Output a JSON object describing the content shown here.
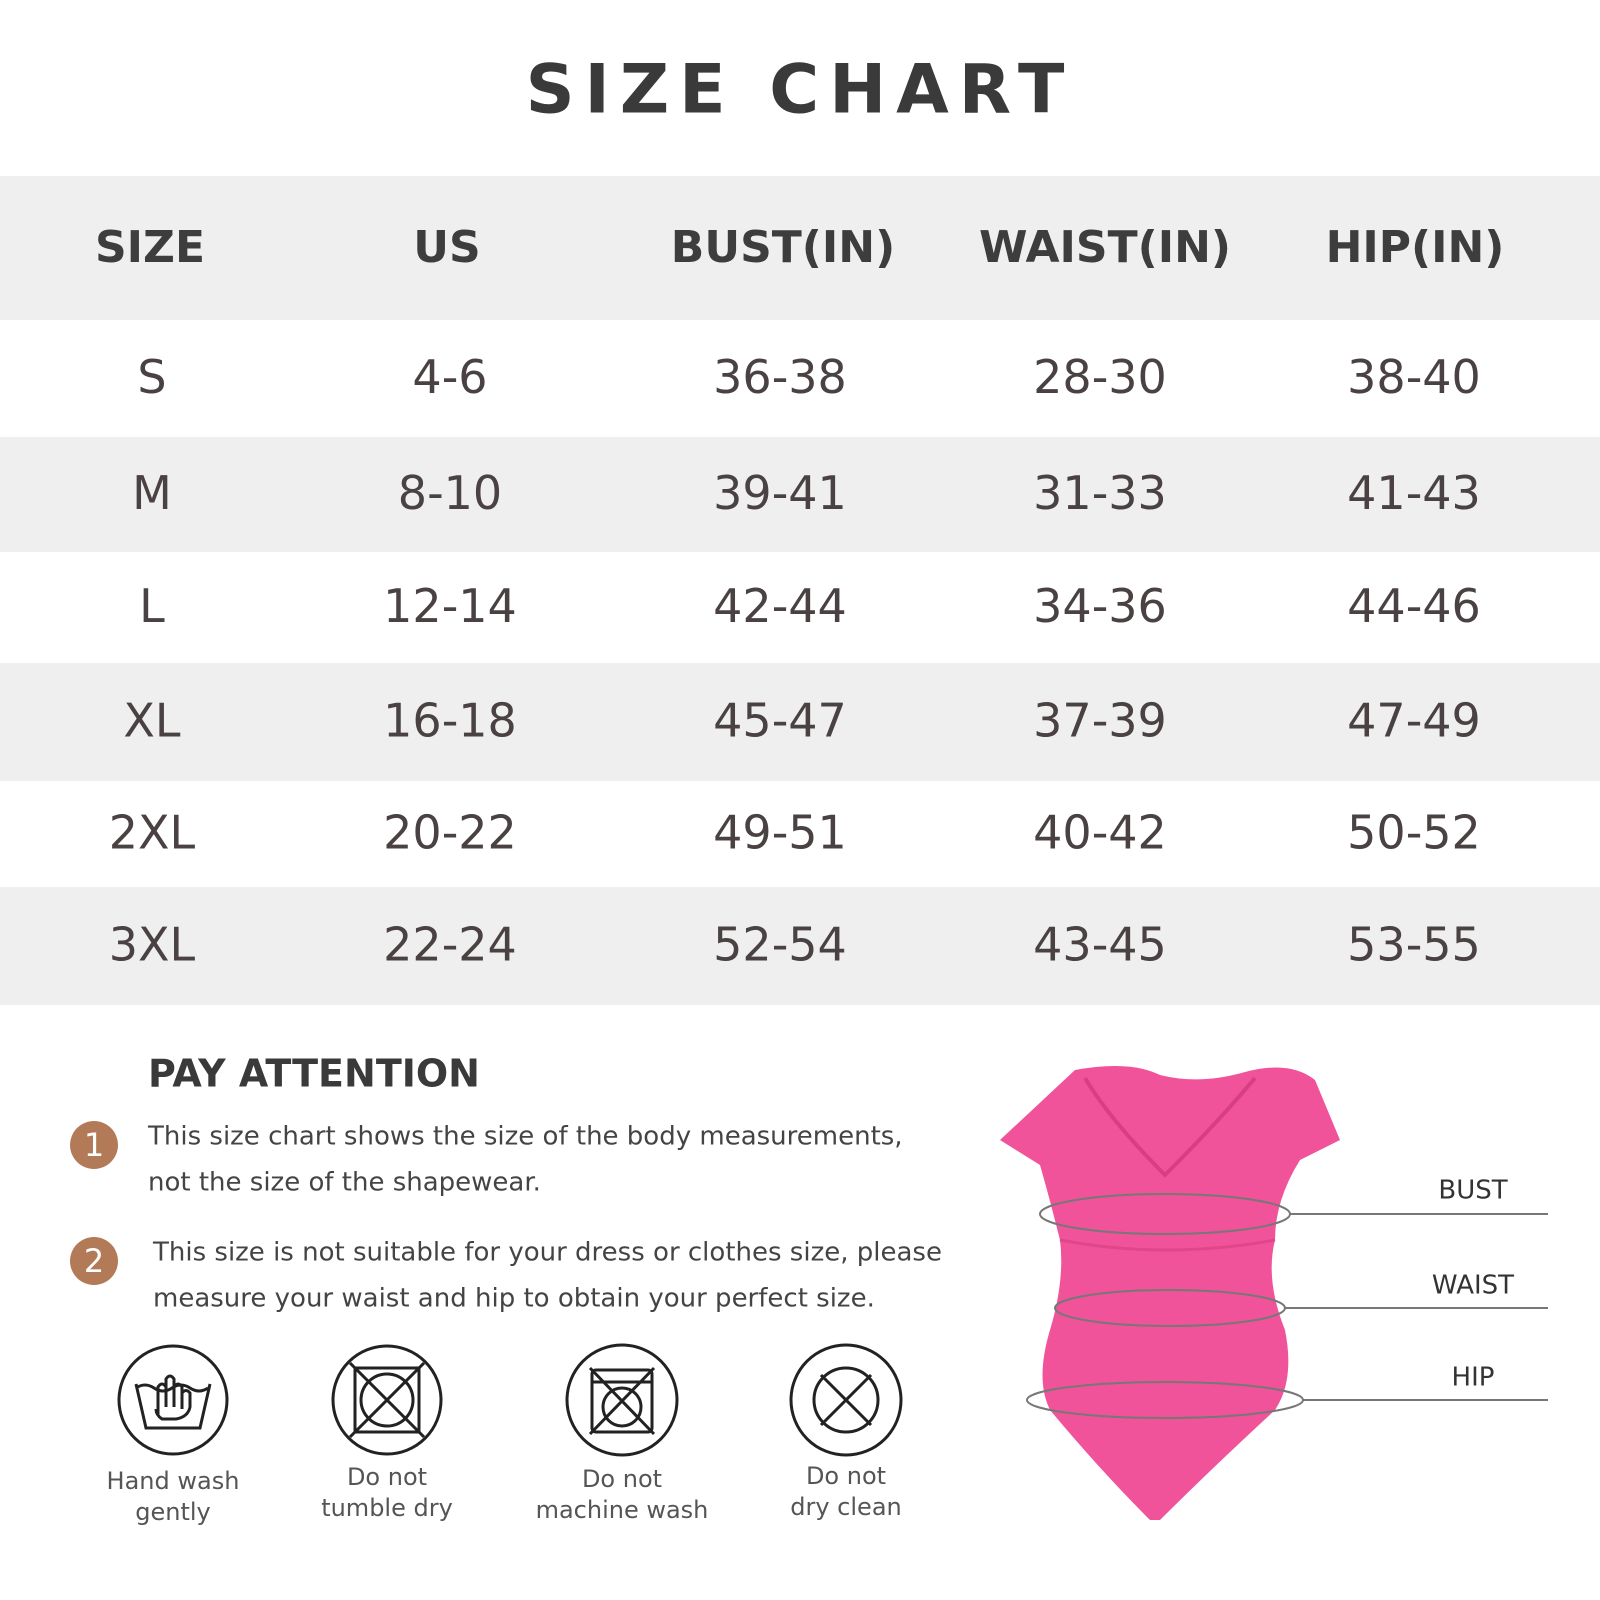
{
  "title": "SIZE CHART",
  "table": {
    "header": [
      "SIZE",
      "US",
      "BUST(IN)",
      "WAIST(IN)",
      "HIP(IN)"
    ],
    "rows": [
      [
        "S",
        "4-6",
        "36-38",
        "28-30",
        "38-40"
      ],
      [
        "M",
        "8-10",
        "39-41",
        "31-33",
        "41-43"
      ],
      [
        "L",
        "12-14",
        "42-44",
        "34-36",
        "44-46"
      ],
      [
        "XL",
        "16-18",
        "45-47",
        "37-39",
        "47-49"
      ],
      [
        "2XL",
        "20-22",
        "49-51",
        "40-42",
        "50-52"
      ],
      [
        "3XL",
        "22-24",
        "52-54",
        "43-45",
        "53-55"
      ]
    ]
  },
  "attention": {
    "title": "PAY ATTENTION",
    "notes": [
      {
        "number": "1",
        "lines": [
          "This size chart shows the size of the body measurements,",
          "not the size of the shapewear."
        ]
      },
      {
        "number": "2",
        "lines": [
          "This size is not suitable for your dress or clothes size, please",
          "measure your waist and hip to obtain your perfect size."
        ]
      }
    ]
  },
  "care": [
    [
      "Hand wash",
      "gently"
    ],
    [
      "Do not",
      "tumble dry"
    ],
    [
      "Do not",
      "machine wash"
    ],
    [
      "Do not",
      "dry clean"
    ]
  ],
  "measurements": [
    "BUST",
    "WAIST",
    "HIP"
  ]
}
